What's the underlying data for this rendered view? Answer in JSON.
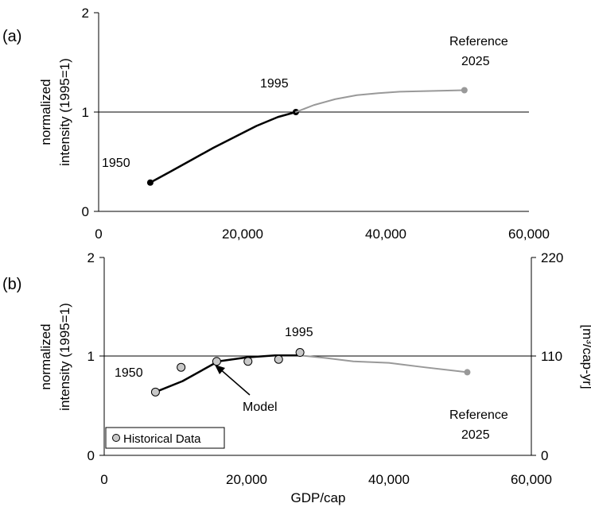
{
  "chart_data": [
    {
      "panel_label": "(a)",
      "type": "line",
      "ylabel": [
        "normalized",
        "intensity (1995=1)"
      ],
      "xlabel": "",
      "xlim": [
        0,
        60000
      ],
      "ylim": [
        0,
        2
      ],
      "x_ticks": [
        0,
        20000,
        40000,
        60000
      ],
      "x_tick_labels": [
        "0",
        "20,000",
        "40,000",
        "60,000"
      ],
      "y_ticks": [
        0,
        1,
        2
      ],
      "y_tick_labels": [
        "0",
        "1",
        "2"
      ],
      "reference_line_y": 1,
      "series": [
        {
          "color": "#000000",
          "x": [
            7200,
            10000,
            13000,
            16000,
            19000,
            22000,
            25000,
            27500
          ],
          "y": [
            0.29,
            0.4,
            0.52,
            0.64,
            0.75,
            0.86,
            0.95,
            1.0
          ],
          "endpoint_markers": true
        },
        {
          "color": "#999999",
          "x": [
            27500,
            30000,
            33000,
            36000,
            39000,
            42000,
            45000,
            48000,
            51000
          ],
          "y": [
            1.0,
            1.07,
            1.13,
            1.17,
            1.19,
            1.205,
            1.21,
            1.215,
            1.22
          ],
          "end_marker": true
        }
      ],
      "annotations": [
        {
          "text": "1950"
        },
        {
          "text": "1995"
        },
        {
          "text": "Reference"
        },
        {
          "text": "2025"
        }
      ]
    },
    {
      "panel_label": "(b)",
      "type": "line",
      "ylabel": [
        "normalized",
        "intensity (1995=1)"
      ],
      "y2label": "[m³/cap-yr]",
      "xlabel": "GDP/cap",
      "xlim": [
        0,
        60000
      ],
      "ylim": [
        0,
        2
      ],
      "x_ticks": [
        0,
        20000,
        40000,
        60000
      ],
      "x_tick_labels": [
        "0",
        "20,000",
        "40,000",
        "60,000"
      ],
      "y_ticks": [
        0,
        1,
        2
      ],
      "y_tick_labels": [
        "0",
        "1",
        "2"
      ],
      "y2_ticks": [
        0,
        110,
        220
      ],
      "y2_tick_labels": [
        "0",
        "110",
        "220"
      ],
      "reference_line_y": 1,
      "series": [
        {
          "name": "Model",
          "color": "#000000",
          "x": [
            7200,
            11000,
            16000,
            20000,
            24000,
            27500
          ],
          "y": [
            0.64,
            0.75,
            0.95,
            0.99,
            1.01,
            1.01
          ]
        },
        {
          "color": "#999999",
          "x": [
            27500,
            31000,
            35000,
            40000,
            45000,
            51000
          ],
          "y": [
            1.01,
            0.985,
            0.95,
            0.935,
            0.89,
            0.84
          ],
          "end_marker": true
        },
        {
          "name": "Historical Data",
          "type": "scatter",
          "color": "#c8c8c8",
          "x": [
            7200,
            10800,
            15800,
            20200,
            24500,
            27500
          ],
          "y": [
            0.64,
            0.89,
            0.95,
            0.95,
            0.97,
            1.04
          ]
        }
      ],
      "annotations": [
        {
          "text": "1950"
        },
        {
          "text": "1995"
        },
        {
          "text": "Model"
        },
        {
          "text": "Reference"
        },
        {
          "text": "2025"
        }
      ],
      "legend": {
        "placement": "bottom-left",
        "entries": [
          "Historical Data"
        ]
      }
    }
  ]
}
